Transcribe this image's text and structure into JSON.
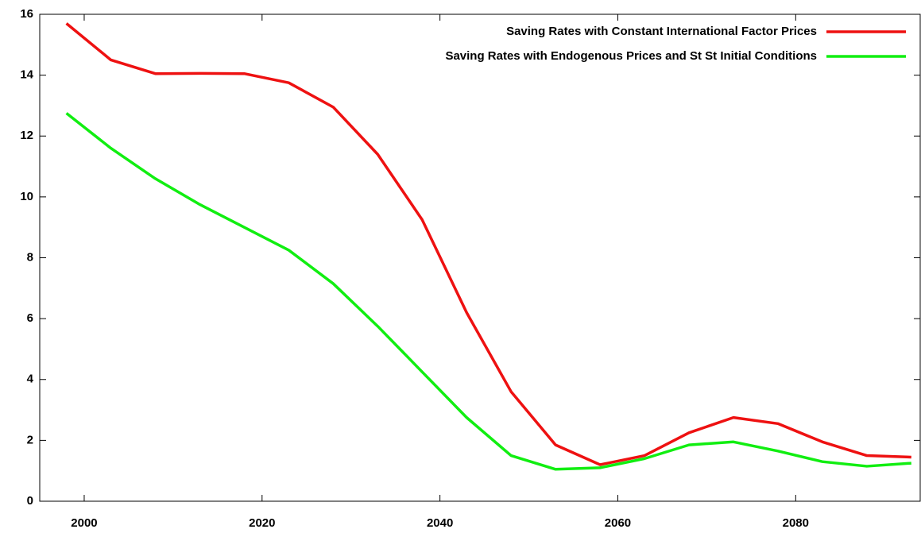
{
  "chart_data": {
    "type": "line",
    "x": [
      1998,
      2003,
      2008,
      2013,
      2018,
      2023,
      2028,
      2033,
      2038,
      2043,
      2048,
      2053,
      2058,
      2063,
      2068,
      2073,
      2078,
      2083,
      2088,
      2093
    ],
    "series": [
      {
        "name": "Saving Rates with Constant International Factor Prices",
        "color": "#ee1111",
        "values": [
          15.7,
          14.5,
          14.05,
          14.06,
          14.05,
          13.75,
          12.95,
          11.4,
          9.25,
          6.2,
          3.6,
          1.85,
          1.2,
          1.5,
          2.25,
          2.75,
          2.55,
          1.95,
          1.5,
          1.45
        ]
      },
      {
        "name": "Saving Rates with Endogenous Prices and St St Initial Conditions",
        "color": "#11ee11",
        "values": [
          12.75,
          11.6,
          10.6,
          9.75,
          9.0,
          8.25,
          7.15,
          5.75,
          4.25,
          2.75,
          1.5,
          1.05,
          1.1,
          1.4,
          1.85,
          1.95,
          1.65,
          1.3,
          1.15,
          1.25
        ]
      }
    ],
    "xlim": [
      1995,
      2094
    ],
    "xticks": [
      2000,
      2020,
      2040,
      2060,
      2080
    ],
    "ylim": [
      0,
      16
    ],
    "yticks": [
      0,
      2,
      4,
      6,
      8,
      10,
      12,
      14,
      16
    ],
    "legend": "top-right"
  }
}
